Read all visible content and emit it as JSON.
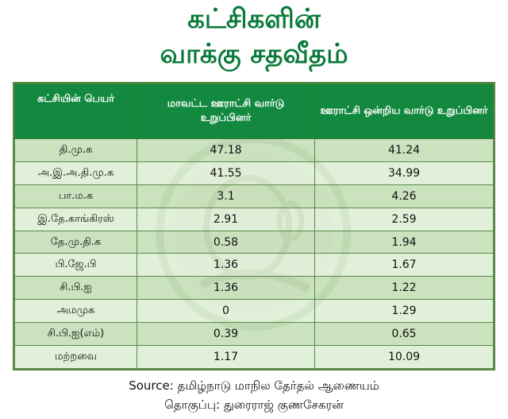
{
  "title": {
    "line1": "கட்சிகளின்",
    "line2": "வாக்கு சதவீதம்"
  },
  "table": {
    "headers": [
      "கட்சியின் பெயர்",
      "மாவட்ட ஊராட்சி வார்டு உறுப்பினர்",
      "ஊராட்சி ஒன்றிய வார்டு உறுப்பினர்"
    ],
    "rows": [
      [
        "தி.மு.க",
        "47.18",
        "41.24"
      ],
      [
        "அ.இ.அ.தி.மு.க",
        "41.55",
        "34.99"
      ],
      [
        "பா.ம.க",
        "3.1",
        "4.26"
      ],
      [
        "இ.தே.காங்கிரஸ்",
        "2.91",
        "2.59"
      ],
      [
        "தே.மு.தி.க",
        "0.58",
        "1.94"
      ],
      [
        "பி.ஜே.பி",
        "1.36",
        "1.67"
      ],
      [
        "சி.பி.ஐ",
        "1.36",
        "1.22"
      ],
      [
        "அமமுக",
        "0",
        "1.29"
      ],
      [
        "சி.பி.ஐ(எம்)",
        "0.39",
        "0.65"
      ],
      [
        "மற்றவை",
        "1.17",
        "10.09"
      ]
    ]
  },
  "footer": {
    "source": "Source: தமிழ்நாடு மாநில தேர்தல் ஆணையம்",
    "compiled": "தொகுப்பு: துரைராஜ் குணசேகரன்"
  },
  "colors": {
    "title": "#0a7a3a",
    "header_bg": "#13893f",
    "row_bg": "#d6e8cc"
  }
}
